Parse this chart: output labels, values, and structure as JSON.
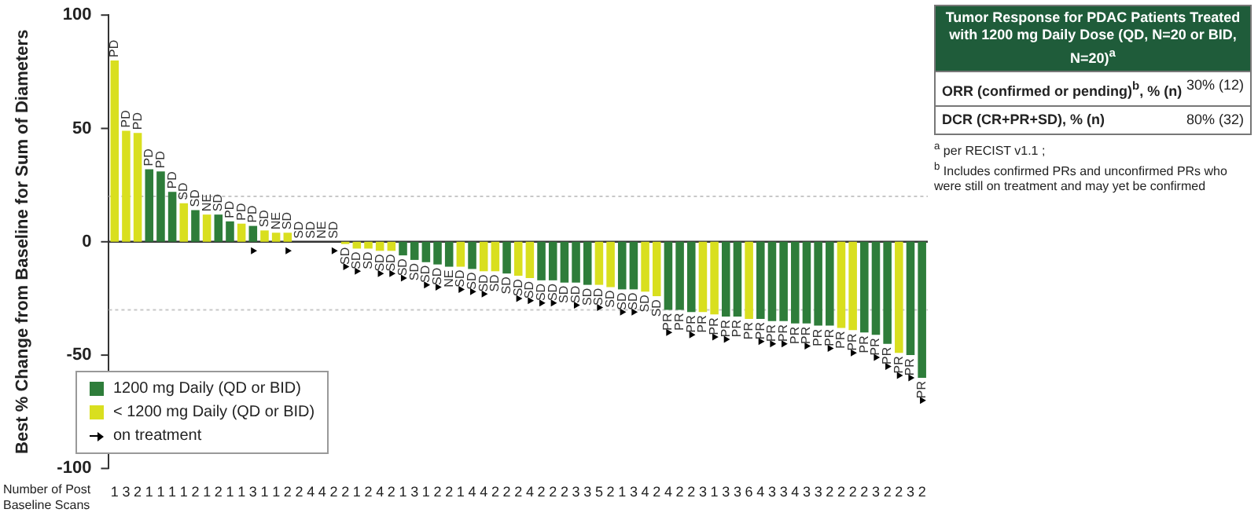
{
  "chart_data": {
    "type": "bar",
    "ylabel": "Best % Change from Baseline for Sum of Diameters",
    "xlabel": "Number of Post Baseline Scans",
    "categories": [
      "1",
      "3",
      "2",
      "1",
      "1",
      "1",
      "1",
      "2",
      "1",
      "2",
      "1",
      "1",
      "3",
      "1",
      "1",
      "2",
      "2",
      "4",
      "4",
      "2",
      "2",
      "1",
      "2",
      "4",
      "2",
      "1",
      "3",
      "1",
      "2",
      "2",
      "1",
      "4",
      "4",
      "2",
      "2",
      "2",
      "4",
      "2",
      "2",
      "2",
      "3",
      "3",
      "5",
      "2",
      "1",
      "3",
      "4",
      "2",
      "4",
      "2",
      "2",
      "3",
      "1",
      "3",
      "3",
      "6",
      "4",
      "3",
      "3",
      "4",
      "3",
      "3",
      "2",
      "2",
      "2",
      "2",
      "3",
      "2",
      "2",
      "3",
      "2"
    ],
    "series": [
      {
        "name": "1200 mg Daily (QD or BID)",
        "color": "#2e7d3a",
        "values": [
          null,
          null,
          null,
          32,
          31,
          22,
          null,
          14,
          null,
          12,
          9,
          null,
          7,
          null,
          null,
          null,
          0,
          0,
          0,
          0,
          null,
          null,
          null,
          null,
          null,
          -6,
          -8,
          -9,
          -10,
          -11,
          null,
          -12,
          null,
          null,
          -14,
          null,
          null,
          -17,
          -17,
          -18,
          -18,
          -19,
          null,
          null,
          -21,
          -21,
          null,
          null,
          -30,
          -30,
          -31,
          null,
          null,
          -33,
          -33,
          null,
          -34,
          -35,
          -35,
          -36,
          -36,
          -37,
          -37,
          null,
          null,
          -40,
          -41,
          -45,
          null,
          -50,
          -60
        ],
        "value_labels": [
          null,
          null,
          null,
          "PD",
          "PD",
          "PD",
          null,
          "SD",
          null,
          "SD",
          "PD",
          null,
          "PD",
          null,
          null,
          null,
          "SD",
          "SD",
          "NE",
          "SD",
          null,
          null,
          null,
          null,
          null,
          "SD",
          "SD",
          "SD",
          "SD",
          "NE",
          null,
          "SD",
          null,
          null,
          "SD",
          null,
          null,
          "SD",
          "SD",
          "SD",
          "SD",
          "SD",
          null,
          null,
          "SD",
          "SD",
          null,
          null,
          "PR",
          "PR",
          "PR",
          null,
          null,
          "PR",
          "PR",
          null,
          "PR",
          "PR",
          "PR",
          "PR",
          "PR",
          "PR",
          "PR",
          null,
          null,
          "PR",
          "PR",
          "PR",
          null,
          "PR",
          "PR"
        ]
      },
      {
        "name": "< 1200 mg Daily (QD or BID)",
        "color": "#d9df1f",
        "values": [
          80,
          49,
          48,
          null,
          null,
          null,
          17,
          null,
          12,
          null,
          null,
          8,
          null,
          5,
          4,
          4,
          null,
          null,
          null,
          null,
          -1,
          -3,
          -3,
          -4,
          -4,
          null,
          null,
          null,
          null,
          null,
          -11,
          null,
          -13,
          -13,
          null,
          -15,
          -16,
          null,
          null,
          null,
          null,
          null,
          -19,
          -20,
          null,
          null,
          -22,
          -24,
          null,
          null,
          null,
          -31,
          -32,
          null,
          null,
          -34,
          null,
          null,
          null,
          null,
          null,
          null,
          null,
          -38,
          -39,
          null,
          null,
          null,
          -49,
          null,
          null
        ],
        "value_labels": [
          "PD",
          "PD",
          "PD",
          null,
          null,
          null,
          "SD",
          null,
          "NE",
          null,
          null,
          "PD",
          null,
          "SD",
          "NE",
          "SD",
          null,
          null,
          null,
          null,
          "SD",
          "SD",
          "SD",
          "SD",
          "SD",
          null,
          null,
          null,
          null,
          null,
          "SD",
          null,
          "SD",
          "SD",
          null,
          "SD",
          "SD",
          null,
          null,
          null,
          null,
          null,
          "SD",
          "SD",
          null,
          null,
          "SD",
          "SD",
          null,
          null,
          null,
          "PR",
          "PR",
          null,
          null,
          "PR",
          null,
          null,
          null,
          null,
          null,
          null,
          null,
          "PR",
          "PR",
          null,
          null,
          null,
          "PR",
          null,
          null
        ]
      },
      {
        "name": "on treatment",
        "type": "scatter",
        "color": "#000000",
        "values": [
          null,
          null,
          null,
          null,
          null,
          null,
          null,
          null,
          null,
          null,
          null,
          null,
          -4,
          null,
          null,
          -4,
          null,
          null,
          null,
          -4,
          -11,
          -13,
          null,
          -14,
          -14,
          -16,
          null,
          -19,
          -20,
          null,
          -21,
          -22,
          -23,
          null,
          null,
          -25,
          -26,
          -27,
          -27,
          null,
          -28,
          null,
          -29,
          null,
          -31,
          -31,
          null,
          null,
          -40,
          null,
          -41,
          null,
          -42,
          -43,
          null,
          null,
          -44,
          -45,
          -45,
          null,
          -46,
          null,
          -47,
          null,
          -49,
          null,
          -51,
          -55,
          -59,
          -60,
          -70
        ]
      }
    ],
    "marker": "triangle",
    "ylim": [
      -100,
      100
    ],
    "yticks": [
      -100,
      -50,
      0,
      50,
      100
    ],
    "legend": "bottom left",
    "ref_lines": [
      {
        "axis": "y",
        "value": 20,
        "color": "#c8c8c8",
        "line_style": "dotted"
      },
      {
        "axis": "y",
        "value": -30,
        "color": "#c8c8c8",
        "line_style": "dotted"
      }
    ],
    "annotations": [
      "Tumor Response for PDAC Patients Treated with 1200 mg Daily Dose (QD, N=20 or BID, N=20)$^{a}$",
      "ORR (confirmed or pending)$^{b}$, % (n)",
      "30% (12)",
      "DCR (CR+PR+SD), % (n)",
      "80% (32)",
      "$^{a}$ per RECIST v1.1 ;",
      "$^{b}$ Includes confirmed PRs and unconfirmed PRs who were still on treatment and may yet be confirmed"
    ]
  }
}
